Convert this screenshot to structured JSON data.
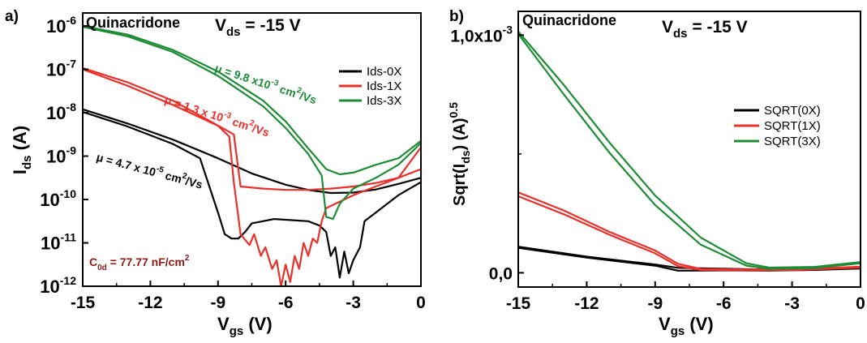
{
  "chart_data": [
    {
      "panel_label": "a)",
      "type": "line",
      "title": "Quinacridone",
      "condition": {
        "symbol": "V",
        "sub": "ds",
        "rest": " = -15 V"
      },
      "xlabel": {
        "symbol": "V",
        "sub": "gs",
        "unit": " (V)"
      },
      "ylabel": {
        "symbol": "I",
        "sub": "ds",
        "unit": " (A)"
      },
      "xlim": [
        -15,
        0
      ],
      "ylim_log10": [
        -12,
        -5.7
      ],
      "yscale": "log",
      "xticks": [
        -15,
        -12,
        -9,
        -6,
        -3,
        0
      ],
      "xtick_labels": [
        "-15",
        "-12",
        "-9",
        "-6",
        "-3",
        "0"
      ],
      "yticks": [
        {
          "exp": -6,
          "base": "10",
          "sup": "-6"
        },
        {
          "exp": -7,
          "base": "10",
          "sup": "-7"
        },
        {
          "exp": -8,
          "base": "10",
          "sup": "-8"
        },
        {
          "exp": -9,
          "base": "10",
          "sup": "-9"
        },
        {
          "exp": -10,
          "base": "10",
          "sup": "-10"
        },
        {
          "exp": -11,
          "base": "10",
          "sup": "-11"
        },
        {
          "exp": -12,
          "base": "10",
          "sup": "-12"
        }
      ],
      "legend_position": "top-right",
      "series": [
        {
          "name": "Ids-0X",
          "color": "#000000",
          "forward": [
            [
              -15,
              -7.92
            ],
            [
              -13,
              -8.25
            ],
            [
              -11,
              -8.62
            ],
            [
              -9,
              -9.05
            ],
            [
              -7.5,
              -9.4
            ],
            [
              -6,
              -9.66
            ],
            [
              -5,
              -9.78
            ],
            [
              -4,
              -9.85
            ],
            [
              -3,
              -9.84
            ],
            [
              -2,
              -9.77
            ],
            [
              -1,
              -9.64
            ],
            [
              0,
              -9.5
            ]
          ],
          "reverse": [
            [
              -15,
              -7.98
            ],
            [
              -13,
              -8.32
            ],
            [
              -11,
              -8.72
            ],
            [
              -9.8,
              -9.05
            ],
            [
              -9,
              -10.3
            ],
            [
              -8.7,
              -10.8
            ],
            [
              -8.4,
              -10.9
            ],
            [
              -8.1,
              -10.9
            ],
            [
              -7.8,
              -10.75
            ],
            [
              -7.5,
              -10.55
            ],
            [
              -6.5,
              -10.45
            ],
            [
              -5,
              -10.5
            ],
            [
              -4.5,
              -10.6
            ],
            [
              -4.2,
              -10.75
            ],
            [
              -4,
              -11.3
            ],
            [
              -3.8,
              -11.1
            ],
            [
              -3.6,
              -11.8
            ],
            [
              -3.4,
              -11.2
            ],
            [
              -3.2,
              -11.7
            ],
            [
              -3,
              -11.4
            ],
            [
              -2.7,
              -11.1
            ],
            [
              -2.5,
              -10.5
            ],
            [
              -2,
              -10.3
            ],
            [
              -1.5,
              -10.1
            ],
            [
              -1,
              -9.9
            ],
            [
              0,
              -9.6
            ]
          ]
        },
        {
          "name": "Ids-1X",
          "color": "#e8312a",
          "forward": [
            [
              -15,
              -6.97
            ],
            [
              -13,
              -7.3
            ],
            [
              -11,
              -7.72
            ],
            [
              -9.5,
              -8.15
            ],
            [
              -8.3,
              -8.5
            ],
            [
              -8,
              -9.7
            ],
            [
              -7,
              -9.75
            ],
            [
              -6,
              -9.78
            ],
            [
              -5,
              -9.78
            ],
            [
              -4,
              -9.75
            ],
            [
              -3,
              -9.7
            ],
            [
              -2,
              -9.62
            ],
            [
              -1,
              -9.5
            ],
            [
              0,
              -9.3
            ]
          ],
          "reverse": [
            [
              -15,
              -7.0
            ],
            [
              -13,
              -7.38
            ],
            [
              -11,
              -7.82
            ],
            [
              -9,
              -8.3
            ],
            [
              -8.5,
              -8.55
            ],
            [
              -8.3,
              -9.6
            ],
            [
              -8,
              -10.8
            ],
            [
              -7.6,
              -11.05
            ],
            [
              -7.4,
              -10.8
            ],
            [
              -7.1,
              -11.3
            ],
            [
              -6.9,
              -11.1
            ],
            [
              -6.6,
              -11.6
            ],
            [
              -6.4,
              -11.4
            ],
            [
              -6.2,
              -12.0
            ],
            [
              -6,
              -11.5
            ],
            [
              -5.8,
              -11.9
            ],
            [
              -5.6,
              -11.3
            ],
            [
              -5.4,
              -11.6
            ],
            [
              -5.2,
              -11.0
            ],
            [
              -5,
              -11.3
            ],
            [
              -4.8,
              -10.9
            ],
            [
              -4.6,
              -11.0
            ],
            [
              -4.4,
              -10.5
            ],
            [
              -4.2,
              -10.2
            ],
            [
              -3,
              -9.9
            ],
            [
              -2,
              -9.7
            ],
            [
              -1,
              -9.5
            ],
            [
              0,
              -8.8
            ]
          ]
        },
        {
          "name": "Ids-3X",
          "color": "#1e8b35",
          "forward": [
            [
              -15,
              -6.0
            ],
            [
              -13,
              -6.2
            ],
            [
              -11,
              -6.55
            ],
            [
              -9,
              -7.05
            ],
            [
              -7,
              -7.72
            ],
            [
              -6,
              -8.2
            ],
            [
              -5,
              -8.82
            ],
            [
              -4.2,
              -9.3
            ],
            [
              -3.6,
              -9.42
            ],
            [
              -3,
              -9.38
            ],
            [
              -2,
              -9.2
            ],
            [
              -1,
              -9.05
            ],
            [
              0,
              -8.65
            ]
          ],
          "reverse": [
            [
              -15,
              -6.02
            ],
            [
              -13,
              -6.24
            ],
            [
              -11,
              -6.6
            ],
            [
              -9,
              -7.15
            ],
            [
              -7,
              -7.85
            ],
            [
              -6,
              -8.35
            ],
            [
              -5,
              -8.95
            ],
            [
              -4.4,
              -9.45
            ],
            [
              -4.2,
              -10.4
            ],
            [
              -3.9,
              -10.45
            ],
            [
              -3.6,
              -10.1
            ],
            [
              -3,
              -9.75
            ],
            [
              -2,
              -9.5
            ],
            [
              -1,
              -9.2
            ],
            [
              0,
              -8.7
            ]
          ]
        }
      ],
      "annotations": [
        {
          "key": "mu_3x",
          "color": "#1e8b35",
          "parts": [
            "μ = 9.8 x10",
            "-3",
            " cm",
            "2",
            "/Vs"
          ]
        },
        {
          "key": "mu_1x",
          "color": "#e8312a",
          "parts": [
            "μ = 1.3 x 10",
            "-3",
            " cm",
            "2",
            "/Vs"
          ]
        },
        {
          "key": "mu_0x",
          "color": "#000000",
          "parts": [
            "μ = 4.7 x 10",
            "-5",
            " cm",
            "2",
            "/Vs"
          ]
        }
      ],
      "capacitance": {
        "color": "#8b1a12",
        "symbol": "C",
        "sub": "0d",
        "rest": " = 77.77 nF/cm",
        "sup": "2"
      }
    },
    {
      "panel_label": "b)",
      "type": "line",
      "title": "Quinacridone",
      "condition": {
        "symbol": "V",
        "sub": "ds",
        "rest": " = -15 V"
      },
      "xlabel": {
        "symbol": "V",
        "sub": "gs",
        "unit": " (V)"
      },
      "ylabel": {
        "pre": "Sqrt(I",
        "sub": "ds",
        "mid": ") (A)",
        "sup": "0.5"
      },
      "xlim": [
        -15,
        0
      ],
      "ylim": [
        -6e-05,
        0.0011
      ],
      "yscale": "linear",
      "xticks": [
        -15,
        -12,
        -9,
        -6,
        -3,
        0
      ],
      "xtick_labels": [
        "-15",
        "-12",
        "-9",
        "-6",
        "-3",
        "0"
      ],
      "yticks": [
        {
          "value": 0,
          "label": "0,0"
        },
        {
          "value": 0.001,
          "label": "1,0x10",
          "sup": "-3"
        }
      ],
      "legend_position": "top-right",
      "series": [
        {
          "name": "SQRT(0X)",
          "color": "#000000",
          "forward": [
            [
              -15,
              0.00011
            ],
            [
              -12,
              6.8e-05
            ],
            [
              -9,
              3.5e-05
            ],
            [
              -8,
              2.1e-05
            ],
            [
              -6,
              1.7e-05
            ],
            [
              -4,
              1.3e-05
            ],
            [
              -2,
              1.4e-05
            ],
            [
              0,
              2.1e-05
            ]
          ],
          "reverse": [
            [
              -15,
              0.000105
            ],
            [
              -12,
              6.4e-05
            ],
            [
              -9,
              3e-05
            ],
            [
              -8,
              9e-06
            ],
            [
              -6,
              1e-05
            ],
            [
              -4,
              9e-06
            ],
            [
              -2,
              1.2e-05
            ],
            [
              0,
              1.8e-05
            ]
          ]
        },
        {
          "name": "SQRT(1X)",
          "color": "#e8312a",
          "forward": [
            [
              -15,
              0.000338
            ],
            [
              -13,
              0.000262
            ],
            [
              -11,
              0.000172
            ],
            [
              -9,
              9.4e-05
            ],
            [
              -8,
              3.8e-05
            ],
            [
              -7,
              1.6e-05
            ],
            [
              -5,
              1.4e-05
            ],
            [
              -3,
              1.4e-05
            ],
            [
              0,
              2.6e-05
            ]
          ],
          "reverse": [
            [
              -15,
              0.000322
            ],
            [
              -13,
              0.000246
            ],
            [
              -11,
              0.00016
            ],
            [
              -9,
              8.2e-05
            ],
            [
              -8,
              2.8e-05
            ],
            [
              -7,
              1.2e-05
            ],
            [
              -5,
              1e-05
            ],
            [
              -3,
              1.1e-05
            ],
            [
              0,
              2.2e-05
            ]
          ]
        },
        {
          "name": "SQRT(3X)",
          "color": "#1e8b35",
          "forward": [
            [
              -15,
              0.001015
            ],
            [
              -13,
              0.00079
            ],
            [
              -11,
              0.000548
            ],
            [
              -9,
              0.000325
            ],
            [
              -7,
              0.000148
            ],
            [
              -5,
              4e-05
            ],
            [
              -4,
              2.2e-05
            ],
            [
              -2,
              2.5e-05
            ],
            [
              0,
              4.5e-05
            ]
          ],
          "reverse": [
            [
              -15,
              0.001005
            ],
            [
              -13,
              0.00075
            ],
            [
              -11,
              0.000505
            ],
            [
              -9,
              0.000285
            ],
            [
              -7,
              0.000118
            ],
            [
              -5,
              3e-05
            ],
            [
              -4,
              1.6e-05
            ],
            [
              -2,
              2e-05
            ],
            [
              0,
              4e-05
            ]
          ]
        }
      ]
    }
  ]
}
